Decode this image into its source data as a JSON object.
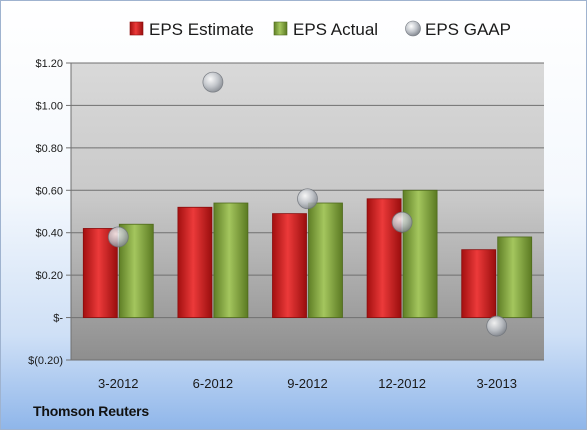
{
  "chart_data": {
    "type": "bar",
    "categories": [
      "3-2012",
      "6-2012",
      "9-2012",
      "12-2012",
      "3-2013"
    ],
    "series": [
      {
        "name": "EPS Estimate",
        "kind": "bar",
        "color": "#d42a2a",
        "values": [
          0.42,
          0.52,
          0.49,
          0.56,
          0.32
        ]
      },
      {
        "name": "EPS Actual",
        "kind": "bar",
        "color": "#8db04a",
        "values": [
          0.44,
          0.54,
          0.54,
          0.6,
          0.38
        ]
      },
      {
        "name": "EPS GAAP",
        "kind": "scatter",
        "color": "#b9bec6",
        "values": [
          0.38,
          1.11,
          0.56,
          0.45,
          -0.04
        ]
      }
    ],
    "ylim": [
      -0.2,
      1.2
    ],
    "yticks": [
      1.2,
      1.0,
      0.8,
      0.6,
      0.4,
      0.2,
      0.0,
      -0.2
    ],
    "ytick_labels": [
      "$1.20",
      "$1.00",
      "$0.80",
      "$0.60",
      "$0.40",
      "$0.20",
      "$-",
      "$(0.20)"
    ],
    "grid": true,
    "legend_position": "top"
  },
  "source": "Thomson Reuters"
}
